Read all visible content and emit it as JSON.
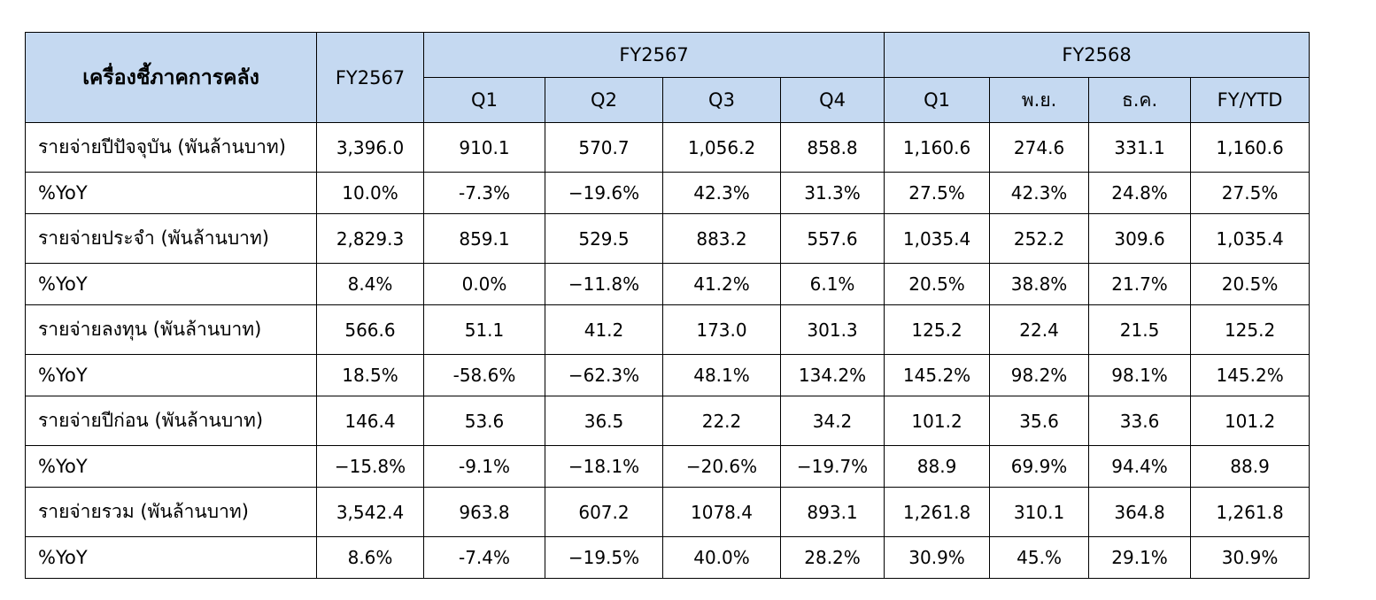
{
  "table": {
    "header": {
      "indicator": "เครื่องชี้ภาคการคลัง",
      "fy_total": "FY2567",
      "group_prev": "FY2567",
      "group_curr": "FY2568",
      "columns": [
        "Q1",
        "Q2",
        "Q3",
        "Q4",
        "Q1",
        "พ.ย.",
        "ธ.ค.",
        "FY/YTD"
      ]
    },
    "rows": [
      {
        "label": "รายจ่ายปีปัจจุบัน (พันล้านบาท)",
        "values": [
          "3,396.0",
          "910.1",
          "570.7",
          "1,056.2",
          "858.8",
          "1,160.6",
          "274.6",
          "331.1",
          "1,160.6"
        ]
      },
      {
        "label": "%YoY",
        "values": [
          "10.0%",
          "-7.3%",
          "−19.6%",
          "42.3%",
          "31.3%",
          "27.5%",
          "42.3%",
          "24.8%",
          "27.5%"
        ]
      },
      {
        "label": "รายจ่ายประจำ (พันล้านบาท)",
        "values": [
          "2,829.3",
          "859.1",
          "529.5",
          "883.2",
          "557.6",
          "1,035.4",
          "252.2",
          "309.6",
          "1,035.4"
        ]
      },
      {
        "label": "%YoY",
        "values": [
          "8.4%",
          "0.0%",
          "−11.8%",
          "41.2%",
          "6.1%",
          "20.5%",
          "38.8%",
          "21.7%",
          "20.5%"
        ]
      },
      {
        "label": "รายจ่ายลงทุน (พันล้านบาท)",
        "values": [
          "566.6",
          "51.1",
          "41.2",
          "173.0",
          "301.3",
          "125.2",
          "22.4",
          "21.5",
          "125.2"
        ]
      },
      {
        "label": "%YoY",
        "values": [
          "18.5%",
          "-58.6%",
          "−62.3%",
          "48.1%",
          "134.2%",
          "145.2%",
          "98.2%",
          "98.1%",
          "145.2%"
        ]
      },
      {
        "label": "รายจ่ายปีก่อน (พันล้านบาท)",
        "values": [
          "146.4",
          "53.6",
          "36.5",
          "22.2",
          "34.2",
          "101.2",
          "35.6",
          "33.6",
          "101.2"
        ]
      },
      {
        "label": "%YoY",
        "values": [
          "−15.8%",
          "-9.1%",
          "−18.1%",
          "−20.6%",
          "−19.7%",
          "88.9",
          "69.9%",
          "94.4%",
          "88.9"
        ]
      },
      {
        "label": "รายจ่ายรวม (พันล้านบาท)",
        "values": [
          "3,542.4",
          "963.8",
          "607.2",
          "1078.4",
          "893.1",
          "1,261.8",
          "310.1",
          "364.8",
          "1,261.8"
        ]
      },
      {
        "label": "%YoY",
        "values": [
          "8.6%",
          "-7.4%",
          "−19.5%",
          "40.0%",
          "28.2%",
          "30.9%",
          "45.%",
          "29.1%",
          "30.9%"
        ]
      }
    ]
  },
  "colors": {
    "header_background": "#c5d9f1",
    "border": "#000000"
  }
}
